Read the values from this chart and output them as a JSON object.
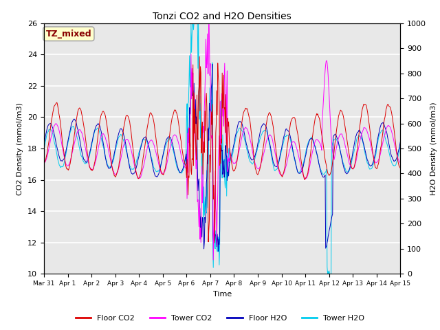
{
  "title": "Tonzi CO2 and H2O Densities",
  "xlabel": "Time",
  "ylabel_left": "CO2 Density (mmol/m3)",
  "ylabel_right": "H2O Density (mmol/m3)",
  "ylim_left": [
    10,
    26
  ],
  "ylim_right": [
    0,
    1000
  ],
  "yticks_left": [
    10,
    12,
    14,
    16,
    18,
    20,
    22,
    24,
    26
  ],
  "yticks_right": [
    0,
    100,
    200,
    300,
    400,
    500,
    600,
    700,
    800,
    900,
    1000
  ],
  "annotation_text": "TZ_mixed",
  "annotation_color": "#880000",
  "annotation_bg": "#ffffcc",
  "annotation_border": "#aaaaaa",
  "colors": {
    "floor_co2": "#dd0000",
    "tower_co2": "#ff00ff",
    "floor_h2o": "#0000bb",
    "tower_h2o": "#00ccee"
  },
  "legend_labels": [
    "Floor CO2",
    "Tower CO2",
    "Floor H2O",
    "Tower H2O"
  ],
  "background_color": "#e8e8e8",
  "grid_color": "#ffffff"
}
